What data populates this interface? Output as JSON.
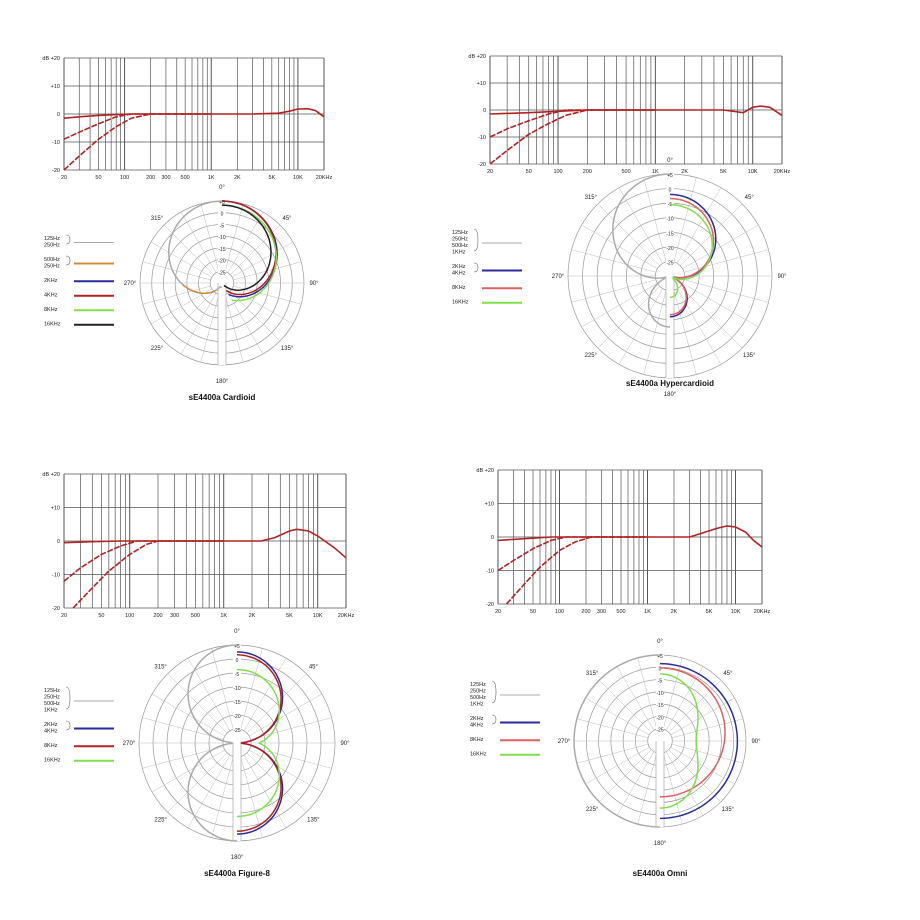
{
  "chart_data": [
    {
      "type": "line",
      "title": "sE4400a Cardioid",
      "xlabel": "",
      "ylabel": "",
      "x_ticks": [
        "20",
        "50",
        "100",
        "200",
        "300",
        "500",
        "1K",
        "2K",
        "5K",
        "10K",
        "20KHz"
      ],
      "y_ticks": [
        "dB +20",
        "+10",
        "0",
        "-10",
        "-20"
      ],
      "ylim": [
        -20,
        20
      ],
      "xlim": [
        20,
        20000
      ],
      "x_scale": "log",
      "series": [
        {
          "color": "#b22222",
          "points": [
            [
              20,
              -1.5
            ],
            [
              30,
              -1
            ],
            [
              50,
              -0.5
            ],
            [
              80,
              -0.2
            ],
            [
              120,
              0
            ],
            [
              1000,
              0
            ],
            [
              3000,
              0
            ],
            [
              6000,
              0.3
            ],
            [
              8000,
              1
            ],
            [
              10000,
              1.8
            ],
            [
              13000,
              1.9
            ],
            [
              16000,
              1.2
            ],
            [
              20000,
              -1
            ]
          ]
        },
        {
          "color": "#b22222",
          "dashed": true,
          "points": [
            [
              20,
              -9
            ],
            [
              30,
              -6.5
            ],
            [
              50,
              -3.5
            ],
            [
              80,
              -1
            ],
            [
              120,
              0
            ],
            [
              1000,
              0
            ]
          ]
        },
        {
          "color": "#b22222",
          "dashed": true,
          "points": [
            [
              20,
              -20
            ],
            [
              30,
              -15
            ],
            [
              50,
              -9
            ],
            [
              80,
              -4.5
            ],
            [
              120,
              -1.5
            ],
            [
              200,
              0
            ],
            [
              1000,
              0
            ]
          ]
        }
      ],
      "polar": {
        "angle_labels": [
          "0°",
          "45°",
          "90°",
          "135°",
          "180°",
          "225°",
          "270°",
          "315°"
        ],
        "ring_labels": [
          "+5",
          "0",
          "-5",
          "-10",
          "-15",
          "-20",
          "-25"
        ],
        "legend": [
          {
            "label": "125Hz\n250Hz",
            "color": "#aaaaaa"
          },
          {
            "label": "500Hz\n250Hz",
            "color": "#d08b3a"
          },
          {
            "label": "2KHz",
            "color": "#2b2b9e"
          },
          {
            "label": "4KHz",
            "color": "#b22222"
          },
          {
            "label": "8KHz",
            "color": "#7ee04a"
          },
          {
            "label": "16KHz",
            "color": "#222222"
          }
        ],
        "curves": [
          {
            "color": "#aaaaaa",
            "shape": "cardioid",
            "min": 0.12,
            "cut_back": true
          },
          {
            "color": "#d08b3a",
            "shape": "cardioid",
            "min": 0.1,
            "left_back": true
          },
          {
            "color": "#2b2b9e",
            "shape": "cardioid",
            "min": 0.15,
            "right": true
          },
          {
            "color": "#b22222",
            "shape": "cardioid",
            "min": 0.15,
            "right": true
          },
          {
            "color": "#7ee04a",
            "shape": "cardioid",
            "min": 0.2,
            "right": true
          },
          {
            "color": "#222222",
            "shape": "cardioid",
            "min": 0.1,
            "right": true
          }
        ]
      }
    },
    {
      "type": "line",
      "title": "sE4400a Hypercardioid",
      "x_ticks": [
        "20",
        "50",
        "100",
        "200",
        "500",
        "1K",
        "2K",
        "5K",
        "10K",
        "20KHz"
      ],
      "y_ticks": [
        "dB +20",
        "+10",
        "0",
        "-10",
        "-20"
      ],
      "ylim": [
        -20,
        20
      ],
      "xlim": [
        20,
        20000
      ],
      "x_scale": "log",
      "series": [
        {
          "color": "#b22222",
          "points": [
            [
              20,
              -1.5
            ],
            [
              50,
              -1
            ],
            [
              100,
              -0.5
            ],
            [
              200,
              0
            ],
            [
              1000,
              0
            ],
            [
              5000,
              0
            ],
            [
              8000,
              -1
            ],
            [
              10000,
              1
            ],
            [
              12000,
              1.5
            ],
            [
              15000,
              1
            ],
            [
              20000,
              -2
            ]
          ]
        },
        {
          "color": "#b22222",
          "dashed": true,
          "points": [
            [
              20,
              -10
            ],
            [
              30,
              -7
            ],
            [
              50,
              -4
            ],
            [
              80,
              -1.5
            ],
            [
              120,
              0
            ],
            [
              1000,
              0
            ]
          ]
        },
        {
          "color": "#b22222",
          "dashed": true,
          "points": [
            [
              20,
              -20
            ],
            [
              30,
              -15
            ],
            [
              50,
              -9
            ],
            [
              80,
              -5
            ],
            [
              120,
              -2
            ],
            [
              200,
              0
            ],
            [
              1000,
              0
            ]
          ]
        }
      ],
      "polar": {
        "angle_labels": [
          "0°",
          "45°",
          "90°",
          "135°",
          "180°",
          "225°",
          "270°",
          "315°"
        ],
        "ring_labels": [
          "+5",
          "0",
          "-5",
          "-10",
          "-15",
          "-20",
          "-25"
        ],
        "legend": [
          {
            "label": "125Hz\n250Hz\n500Hz\n1KHz",
            "color": "#aaaaaa"
          },
          {
            "label": "2KHz\n4KHz",
            "color": "#2b2b9e"
          },
          {
            "label": "8KHz",
            "color": "#e06060"
          },
          {
            "label": "16KHz",
            "color": "#7ee04a"
          }
        ]
      }
    },
    {
      "type": "line",
      "title": "sE4400a Figure-8",
      "x_ticks": [
        "20",
        "50",
        "100",
        "200",
        "300",
        "500",
        "1K",
        "2K",
        "5K",
        "10K",
        "20KHz"
      ],
      "y_ticks": [
        "dB +20",
        "+10",
        "0",
        "-10",
        "-20"
      ],
      "ylim": [
        -20,
        20
      ],
      "xlim": [
        20,
        20000
      ],
      "x_scale": "log",
      "series": [
        {
          "color": "#b22222",
          "points": [
            [
              20,
              -0.5
            ],
            [
              40,
              -0.2
            ],
            [
              80,
              0
            ],
            [
              1000,
              0
            ],
            [
              2500,
              0
            ],
            [
              3500,
              1
            ],
            [
              5000,
              3
            ],
            [
              6000,
              3.5
            ],
            [
              8000,
              3
            ],
            [
              10000,
              1.5
            ],
            [
              15000,
              -2
            ],
            [
              20000,
              -5
            ]
          ]
        },
        {
          "color": "#b22222",
          "dashed": true,
          "points": [
            [
              20,
              -12
            ],
            [
              30,
              -8
            ],
            [
              50,
              -4
            ],
            [
              80,
              -1.5
            ],
            [
              120,
              0
            ],
            [
              1000,
              0
            ]
          ]
        },
        {
          "color": "#b22222",
          "dashed": true,
          "points": [
            [
              25,
              -20
            ],
            [
              40,
              -14
            ],
            [
              60,
              -9
            ],
            [
              100,
              -4
            ],
            [
              150,
              -1
            ],
            [
              200,
              0
            ],
            [
              1000,
              0
            ]
          ]
        }
      ],
      "polar": {
        "angle_labels": [
          "0°",
          "45°",
          "90°",
          "135°",
          "180°",
          "225°",
          "270°",
          "315°"
        ],
        "ring_labels": [
          "+5",
          "0",
          "-5",
          "-10",
          "-15",
          "-20",
          "-25"
        ],
        "legend": [
          {
            "label": "125Hz\n250Hz\n500Hz\n1KHz",
            "color": "#aaaaaa"
          },
          {
            "label": "2KHz\n4KHz",
            "color": "#2b2b9e"
          },
          {
            "label": "8KHz",
            "color": "#b22222"
          },
          {
            "label": "16KHz",
            "color": "#7ee04a"
          }
        ]
      }
    },
    {
      "type": "line",
      "title": "sE4400a Omni",
      "x_ticks": [
        "20",
        "50",
        "100",
        "200",
        "300",
        "500",
        "1K",
        "2K",
        "5K",
        "10K",
        "20KHz"
      ],
      "y_ticks": [
        "dB +20",
        "+10",
        "0",
        "-10",
        "-20"
      ],
      "ylim": [
        -20,
        20
      ],
      "xlim": [
        20,
        20000
      ],
      "x_scale": "log",
      "series": [
        {
          "color": "#b22222",
          "points": [
            [
              20,
              -1
            ],
            [
              40,
              -0.5
            ],
            [
              80,
              0
            ],
            [
              1000,
              0
            ],
            [
              3000,
              0
            ],
            [
              4000,
              1
            ],
            [
              6000,
              2.5
            ],
            [
              8000,
              3.3
            ],
            [
              10000,
              3
            ],
            [
              13000,
              1.5
            ],
            [
              16000,
              -1
            ],
            [
              20000,
              -3
            ]
          ]
        },
        {
          "color": "#b22222",
          "dashed": true,
          "points": [
            [
              20,
              -10
            ],
            [
              30,
              -7
            ],
            [
              50,
              -3.5
            ],
            [
              80,
              -1
            ],
            [
              120,
              0
            ],
            [
              1000,
              0
            ]
          ]
        },
        {
          "color": "#b22222",
          "dashed": true,
          "points": [
            [
              25,
              -20
            ],
            [
              40,
              -14
            ],
            [
              60,
              -9
            ],
            [
              100,
              -4
            ],
            [
              150,
              -1.5
            ],
            [
              230,
              0
            ],
            [
              1000,
              0
            ]
          ]
        }
      ],
      "polar": {
        "angle_labels": [
          "0°",
          "45°",
          "90°",
          "135°",
          "180°",
          "225°",
          "270°",
          "315°"
        ],
        "ring_labels": [
          "+5",
          "0",
          "-5",
          "-10",
          "-15",
          "-20",
          "-25"
        ],
        "legend": [
          {
            "label": "125Hz\n250Hz\n500Hz\n1KHz",
            "color": "#aaaaaa"
          },
          {
            "label": "2KHz\n4KHz",
            "color": "#2b2b9e"
          },
          {
            "label": "8KHz",
            "color": "#e06060"
          },
          {
            "label": "16KHz",
            "color": "#7ee04a"
          }
        ]
      }
    }
  ]
}
